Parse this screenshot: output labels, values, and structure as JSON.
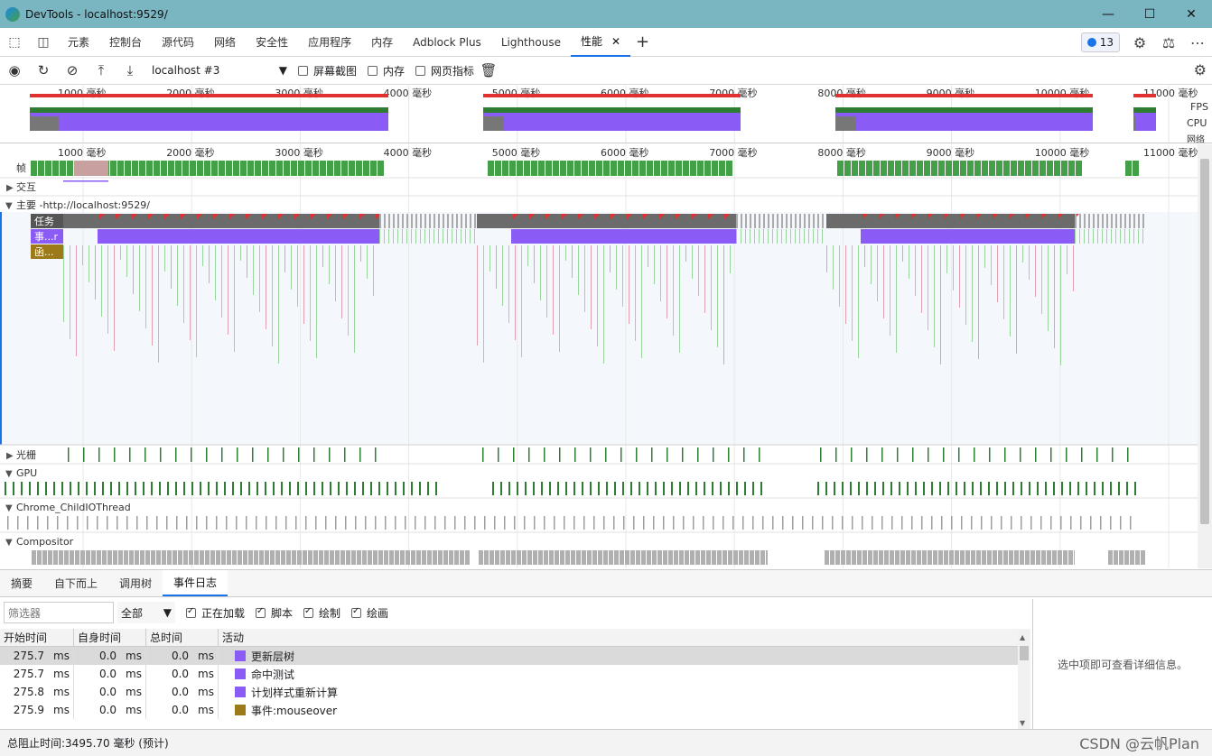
{
  "window": {
    "title": "DevTools - localhost:9529/"
  },
  "tabs": [
    {
      "label": "元素"
    },
    {
      "label": "控制台"
    },
    {
      "label": "源代码"
    },
    {
      "label": "网络"
    },
    {
      "label": "安全性"
    },
    {
      "label": "应用程序"
    },
    {
      "label": "内存"
    },
    {
      "label": "Adblock Plus"
    },
    {
      "label": "Lighthouse"
    },
    {
      "label": "性能",
      "active": true
    }
  ],
  "issues_count": "13",
  "toolbar": {
    "profile_select": "localhost #3",
    "screenshots_label": "屏幕截图",
    "memory_label": "内存",
    "web_vitals_label": "网页指标"
  },
  "overview": {
    "ticks": [
      "1000  毫秒",
      "2000  毫秒",
      "3000  毫秒",
      "4000  毫秒",
      "5000  毫秒",
      "6000  毫秒",
      "7000  毫秒",
      "8000  毫秒",
      "9000  毫秒",
      "10000  毫秒",
      "11000  毫秒"
    ],
    "fps_label": "FPS",
    "cpu_label": "CPU",
    "net_label": "网络"
  },
  "timeline": {
    "ticks": [
      "1000  毫秒",
      "2000  毫秒",
      "3000  毫秒",
      "4000  毫秒",
      "5000  毫秒",
      "6000  毫秒",
      "7000  毫秒",
      "8000  毫秒",
      "9000  毫秒",
      "10000  毫秒",
      "11000  毫秒"
    ],
    "frames_label": "帧",
    "interactions_label": "交互",
    "main_label": "主要 -http://localhost:9529/",
    "task_label": "任务",
    "event_label": "事...r",
    "func_label": "函...",
    "raster_label": "光栅",
    "gpu_label": "GPU",
    "io_label": "Chrome_ChildIOThread",
    "compositor_label": "Compositor"
  },
  "colors": {
    "green": "#43a047",
    "purple": "#8a5cf5",
    "red": "#e03030",
    "gray": "#9e9e9e",
    "accent": "#1a73e8"
  },
  "bottom": {
    "tabs": [
      "摘要",
      "自下而上",
      "调用树",
      "事件日志"
    ],
    "filter_placeholder": "筛选器",
    "select_value": "全部",
    "checkboxes": [
      "正在加载",
      "脚本",
      "绘制",
      "绘画"
    ],
    "columns": [
      "开始时间",
      "自身时间",
      "总时间",
      "活动"
    ],
    "rows": [
      {
        "start": "275.7",
        "self": "0.0",
        "total": "0.0",
        "activity": "更新层树",
        "color": "#8a5cf5"
      },
      {
        "start": "275.7",
        "self": "0.0",
        "total": "0.0",
        "activity": "命中测试",
        "color": "#8a5cf5"
      },
      {
        "start": "275.8",
        "self": "0.0",
        "total": "0.0",
        "activity": "计划样式重新计算",
        "color": "#8a5cf5"
      },
      {
        "start": "275.9",
        "self": "0.0",
        "total": "0.0",
        "activity": "事件:mouseover",
        "color": "#9c7a1a"
      }
    ],
    "unit": "ms",
    "details_text": "选中项即可查看详细信息。"
  },
  "status": {
    "text": "总阻止时间:3495.70 毫秒 (预计)"
  },
  "watermark": "CSDN @云帆Plan"
}
